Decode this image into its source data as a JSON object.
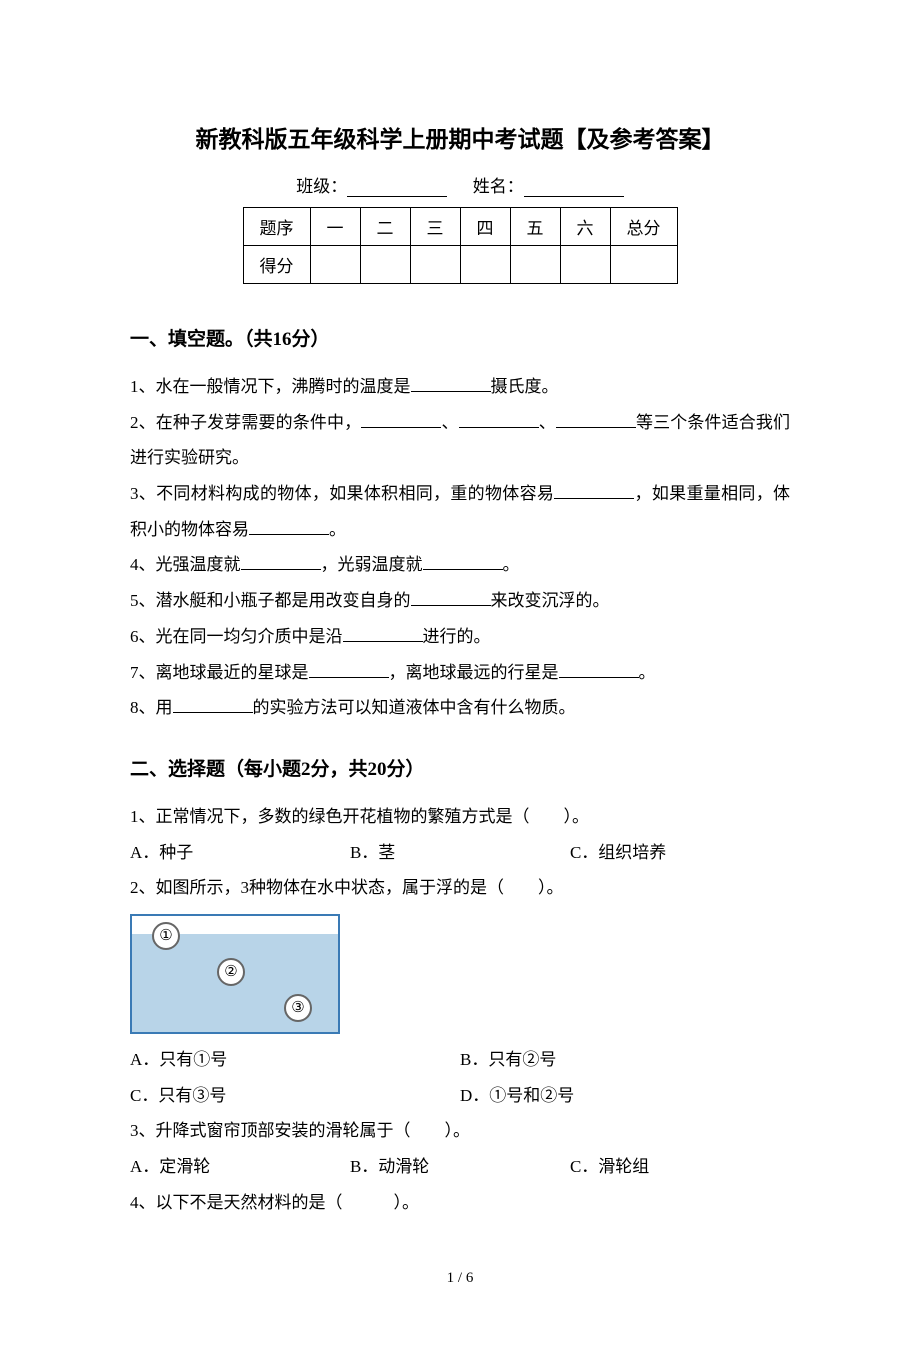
{
  "title": "新教科版五年级科学上册期中考试题【及参考答案】",
  "info": {
    "class_label": "班级：",
    "name_label": "姓名："
  },
  "score_table": {
    "header_label": "题序",
    "score_label": "得分",
    "columns": [
      "一",
      "二",
      "三",
      "四",
      "五",
      "六",
      "总分"
    ]
  },
  "sections": {
    "fill": {
      "title": "一、填空题。（共16分）",
      "items": [
        {
          "pre": "1、水在一般情况下，沸腾时的温度是",
          "post": "摄氏度。"
        },
        {
          "text": "2、在种子发芽需要的条件中，",
          "mid1": "、",
          "mid2": "、",
          "post": "等三个条件适合我们进行实验研究。"
        },
        {
          "pre": "3、不同材料构成的物体，如果体积相同，重的物体容易",
          "mid": "，如果重量相同，体积小的物体容易",
          "post": "。"
        },
        {
          "pre": "4、光强温度就",
          "mid": "，光弱温度就",
          "post": "。"
        },
        {
          "pre": "5、潜水艇和小瓶子都是用改变自身的",
          "post": "来改变沉浮的。"
        },
        {
          "pre": "6、光在同一均匀介质中是沿",
          "post": "进行的。"
        },
        {
          "pre": "7、离地球最近的星球是",
          "mid": "，离地球最远的行星是",
          "post": "。"
        },
        {
          "pre": "8、用",
          "post": "的实验方法可以知道液体中含有什么物质。"
        }
      ]
    },
    "choice": {
      "title": "二、选择题（每小题2分，共20分）",
      "q1": {
        "text": "1、正常情况下，多数的绿色开花植物的繁殖方式是（　　）。",
        "opts": {
          "a": "A．种子",
          "b": "B．茎",
          "c": "C．组织培养"
        }
      },
      "q2": {
        "text": "2、如图所示，3种物体在水中状态，属于浮的是（　　）。",
        "diagram_labels": {
          "l1": "①",
          "l2": "②",
          "l3": "③"
        },
        "opts": {
          "a": "A．只有①号",
          "b": "B．只有②号",
          "c": "C．只有③号",
          "d": "D．①号和②号"
        }
      },
      "q3": {
        "text": "3、升降式窗帘顶部安装的滑轮属于（　　）。",
        "opts": {
          "a": "A．定滑轮",
          "b": "B．动滑轮",
          "c": "C．滑轮组"
        }
      },
      "q4": {
        "text": "4、以下不是天然材料的是（　　　）。"
      }
    }
  },
  "footer": "1 / 6",
  "colors": {
    "text": "#000000",
    "background": "#ffffff",
    "water_border": "#3a7ab5",
    "water_fill": "#b8d4e8"
  }
}
